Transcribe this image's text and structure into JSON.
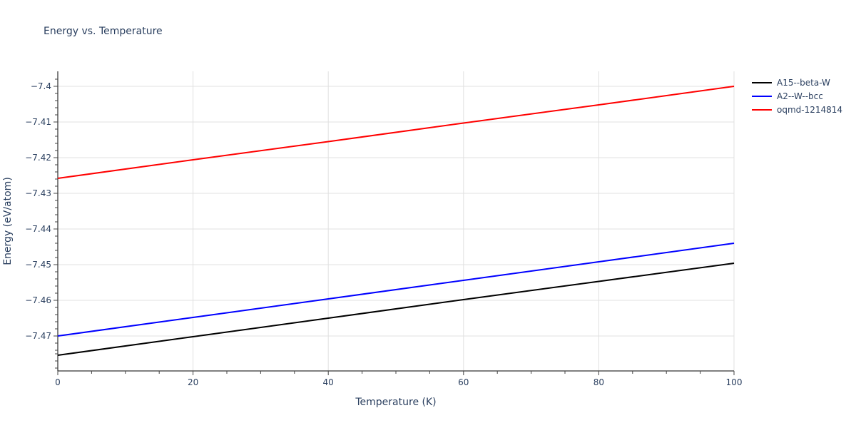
{
  "title": "Energy vs. Temperature",
  "chart_data": {
    "type": "line",
    "title": "Energy vs. Temperature",
    "xlabel": "Temperature (K)",
    "ylabel": "Energy (eV/atom)",
    "xlim": [
      0,
      100
    ],
    "ylim": [
      -7.4795,
      -7.3958
    ],
    "x_ticks": [
      0,
      20,
      40,
      60,
      80,
      100
    ],
    "y_ticks": [
      -7.4,
      -7.41,
      -7.42,
      -7.43,
      -7.44,
      -7.45,
      -7.46,
      -7.47
    ],
    "y_tick_labels": [
      "−7.4",
      "−7.41",
      "−7.42",
      "−7.43",
      "−7.44",
      "−7.45",
      "−7.46",
      "−7.47"
    ],
    "grid": true,
    "legend_position": "right",
    "x": [
      0,
      20,
      40,
      60,
      80,
      100
    ],
    "series": [
      {
        "name": "A15--beta-W",
        "color": "#000000",
        "values": [
          -7.4754,
          -7.4702,
          -7.465,
          -7.4598,
          -7.4547,
          -7.4496
        ]
      },
      {
        "name": "A2--W--bcc",
        "color": "#0000ff",
        "values": [
          -7.47,
          -7.4648,
          -7.4596,
          -7.4544,
          -7.4492,
          -7.444
        ]
      },
      {
        "name": "oqmd-1214814",
        "color": "#ff0000",
        "values": [
          -7.4258,
          -7.4206,
          -7.4155,
          -7.4103,
          -7.4052,
          -7.4
        ]
      }
    ]
  }
}
